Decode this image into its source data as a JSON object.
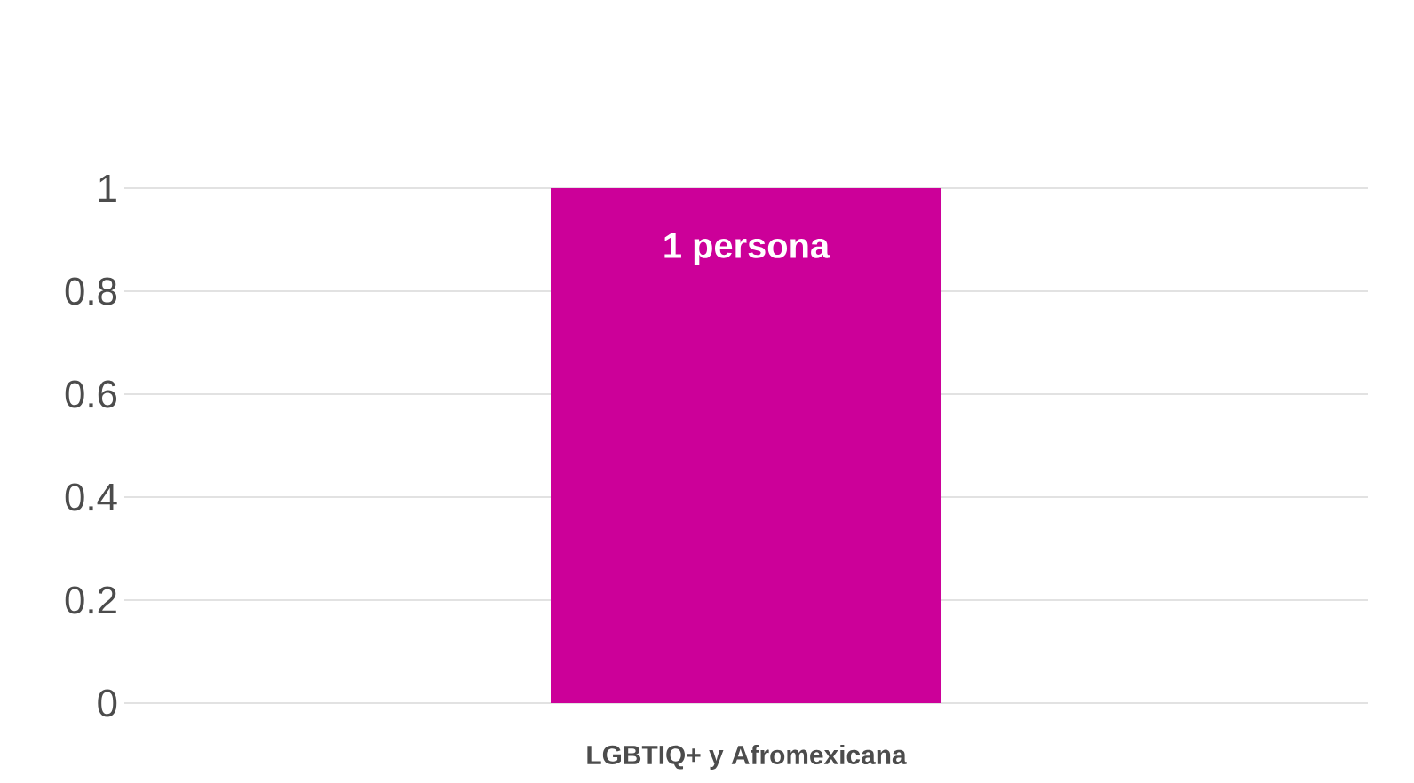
{
  "chart_data": {
    "type": "bar",
    "categories": [
      "LGBTIQ+ y  Afromexicana"
    ],
    "values": [
      1
    ],
    "color": "#cc0099",
    "value_labels": [
      "1 persona"
    ],
    "ylim": [
      0,
      1
    ],
    "yticks": [
      0,
      0.2,
      0.4,
      0.6,
      0.8,
      1
    ],
    "grid": "y"
  }
}
